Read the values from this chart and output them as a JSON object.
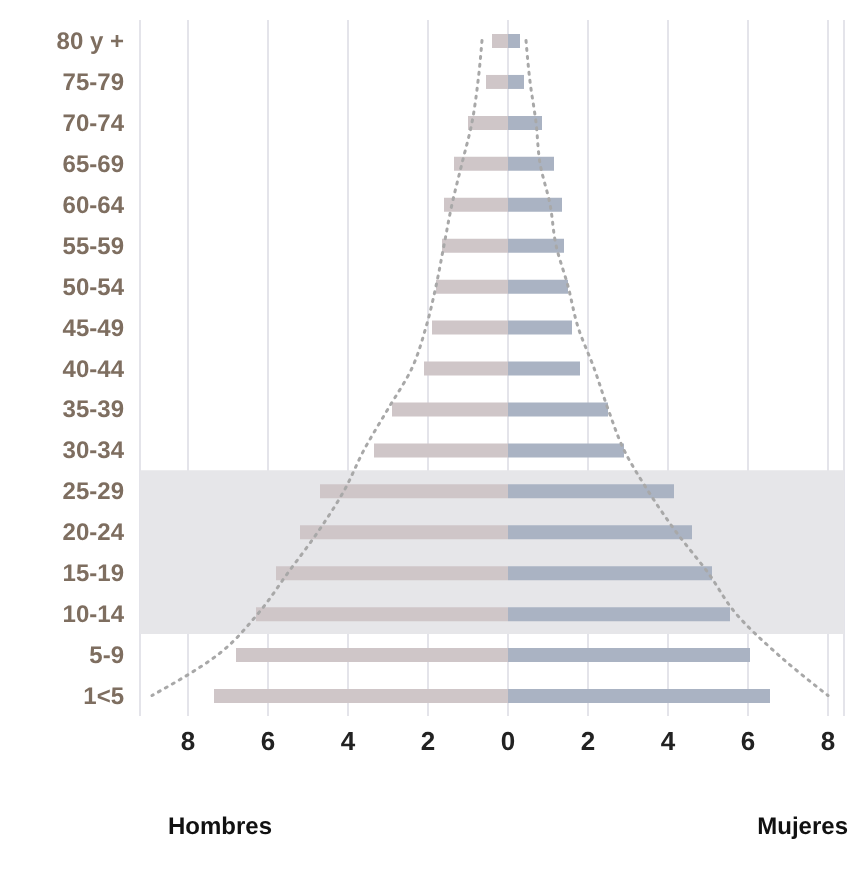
{
  "chart_data": {
    "type": "bar",
    "orientation": "horizontal",
    "stacked": true,
    "categories": [
      "80 y +",
      "75-79",
      "70-74",
      "65-69",
      "60-64",
      "55-59",
      "50-54",
      "45-49",
      "40-44",
      "35-39",
      "30-34",
      "25-29",
      "20-24",
      "15-19",
      "10-14",
      "5-9",
      "1<5"
    ],
    "series": [
      {
        "color": "#cfc6c8",
        "values": [
          -0.4,
          -0.55,
          -1.0,
          -1.35,
          -1.6,
          -1.65,
          -1.8,
          -1.9,
          -2.1,
          -2.9,
          -3.35,
          -4.7,
          -5.2,
          -5.8,
          -6.3,
          -6.8,
          -7.35
        ]
      },
      {
        "color": "#aab3c3",
        "values": [
          0.3,
          0.4,
          0.85,
          1.15,
          1.35,
          1.4,
          1.5,
          1.6,
          1.8,
          2.5,
          2.9,
          4.15,
          4.6,
          5.1,
          5.55,
          6.05,
          6.55
        ]
      },
      {
        "type": "line",
        "line_style": "dotted",
        "marker": "none",
        "color": "#a8a8a8",
        "values": [
          -0.65,
          -0.75,
          -0.9,
          -1.15,
          -1.4,
          -1.6,
          -1.8,
          -2.05,
          -2.4,
          -3.0,
          -3.6,
          -4.1,
          -4.75,
          -5.5,
          -6.25,
          -7.25,
          -8.9
        ]
      },
      {
        "type": "line",
        "line_style": "dotted",
        "marker": "none",
        "color": "#a8a8a8",
        "values": [
          0.45,
          0.55,
          0.7,
          0.8,
          1.05,
          1.2,
          1.5,
          1.75,
          2.15,
          2.5,
          2.9,
          3.5,
          4.2,
          5.0,
          5.7,
          6.75,
          8.0
        ]
      }
    ],
    "xlim": [
      -9.2,
      8.4
    ],
    "xticks": [
      {
        "value": -8,
        "label": "8"
      },
      {
        "value": -6,
        "label": "6"
      },
      {
        "value": -4,
        "label": "4"
      },
      {
        "value": -2,
        "label": "2"
      },
      0,
      2,
      4,
      6,
      8
    ],
    "bands": [
      {
        "axis": "y",
        "from": "25-29",
        "to": "10-14",
        "color": "#e6e6e9"
      }
    ],
    "grid": "x",
    "annotations": [
      "Hombres",
      "Mujeres"
    ]
  }
}
